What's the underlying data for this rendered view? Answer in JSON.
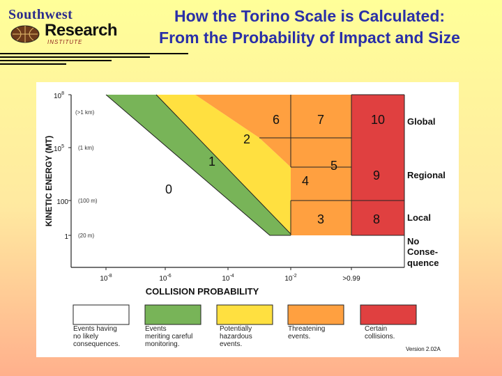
{
  "logo": {
    "line1": "Southwest",
    "line2": "Research",
    "line3": "INSTITUTE"
  },
  "title": {
    "line1": "How the Torino Scale is Calculated:",
    "line2": "From the Probability of Impact and Size"
  },
  "axes": {
    "y_label": "KINETIC ENERGY (MT)",
    "x_label": "COLLISION PROBABILITY",
    "y_ticks": [
      {
        "base": "10",
        "exp": "8"
      },
      {
        "base": "10",
        "exp": "5"
      },
      {
        "base": "100",
        "exp": ""
      },
      {
        "base": "1",
        "exp": ""
      }
    ],
    "size_labels": [
      "(>1 km)",
      "(1 km)",
      "(100 m)",
      "(20 m)"
    ],
    "x_ticks": [
      {
        "base": "10",
        "exp": "-8"
      },
      {
        "base": "10",
        "exp": "-6"
      },
      {
        "base": "10",
        "exp": "-4"
      },
      {
        "base": "10",
        "exp": "-2"
      },
      {
        "base": ">0.99",
        "exp": ""
      }
    ]
  },
  "regions": {
    "r0": "0",
    "r1": "1",
    "r2": "2",
    "r3": "3",
    "r4": "4",
    "r5": "5",
    "r6": "6",
    "r7": "7",
    "r8": "8",
    "r9": "9",
    "r10": "10"
  },
  "consequences": {
    "global": "Global",
    "regional": "Regional",
    "local": "Local",
    "none_1": "No",
    "none_2": "Conse-",
    "none_3": "quence"
  },
  "legend": [
    {
      "color": "#ffffff",
      "lines": [
        "Events having",
        "no likely",
        "consequences."
      ]
    },
    {
      "color": "#78b458",
      "lines": [
        "Events",
        "meriting careful",
        "monitoring."
      ]
    },
    {
      "color": "#ffe040",
      "lines": [
        "Potentially",
        "hazardous",
        "events."
      ]
    },
    {
      "color": "#ffa040",
      "lines": [
        "Threatening",
        "events."
      ]
    },
    {
      "color": "#e04040",
      "lines": [
        "Certain",
        "collisions."
      ]
    }
  ],
  "version": "Version 2.02A",
  "colors": {
    "white": "#ffffff",
    "green": "#78b458",
    "yellow": "#ffe040",
    "orange": "#ffa040",
    "red": "#e04040",
    "title_blue": "#2a2fa8"
  }
}
